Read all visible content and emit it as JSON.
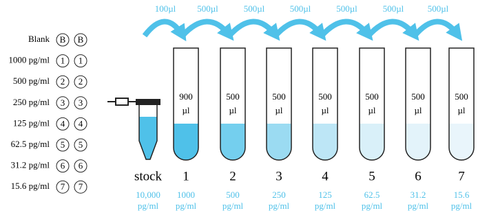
{
  "transfers": [
    "100µl",
    "500µl",
    "500µl",
    "500µl",
    "500µl",
    "500µl",
    "500µl"
  ],
  "legend": [
    {
      "label": "Blank",
      "marks": [
        "B",
        "B"
      ]
    },
    {
      "label": "1000 pg/ml",
      "marks": [
        "1",
        "1"
      ]
    },
    {
      "label": "500 pg/ml",
      "marks": [
        "2",
        "2"
      ]
    },
    {
      "label": "250 pg/ml",
      "marks": [
        "3",
        "3"
      ]
    },
    {
      "label": "125 pg/ml",
      "marks": [
        "4",
        "4"
      ]
    },
    {
      "label": "62.5 pg/ml",
      "marks": [
        "5",
        "5"
      ]
    },
    {
      "label": "31.2 pg/ml",
      "marks": [
        "6",
        "6"
      ]
    },
    {
      "label": "15.6 pg/ml",
      "marks": [
        "7",
        "7"
      ]
    }
  ],
  "stock": {
    "label": "stock",
    "concentration": "10,000",
    "unit": "pg/ml"
  },
  "tubes": [
    {
      "number": "1",
      "volume": "900",
      "volume_unit": "µl",
      "concentration": "1000",
      "unit": "pg/ml"
    },
    {
      "number": "2",
      "volume": "500",
      "volume_unit": "µl",
      "concentration": "500",
      "unit": "pg/ml"
    },
    {
      "number": "3",
      "volume": "500",
      "volume_unit": "µl",
      "concentration": "250",
      "unit": "pg/ml"
    },
    {
      "number": "4",
      "volume": "500",
      "volume_unit": "µl",
      "concentration": "125",
      "unit": "pg/ml"
    },
    {
      "number": "5",
      "volume": "500",
      "volume_unit": "µl",
      "concentration": "62.5",
      "unit": "pg/ml"
    },
    {
      "number": "6",
      "volume": "500",
      "volume_unit": "µl",
      "concentration": "31.2",
      "unit": "pg/ml"
    },
    {
      "number": "7",
      "volume": "500",
      "volume_unit": "µl",
      "concentration": "15.6",
      "unit": "pg/ml"
    }
  ]
}
